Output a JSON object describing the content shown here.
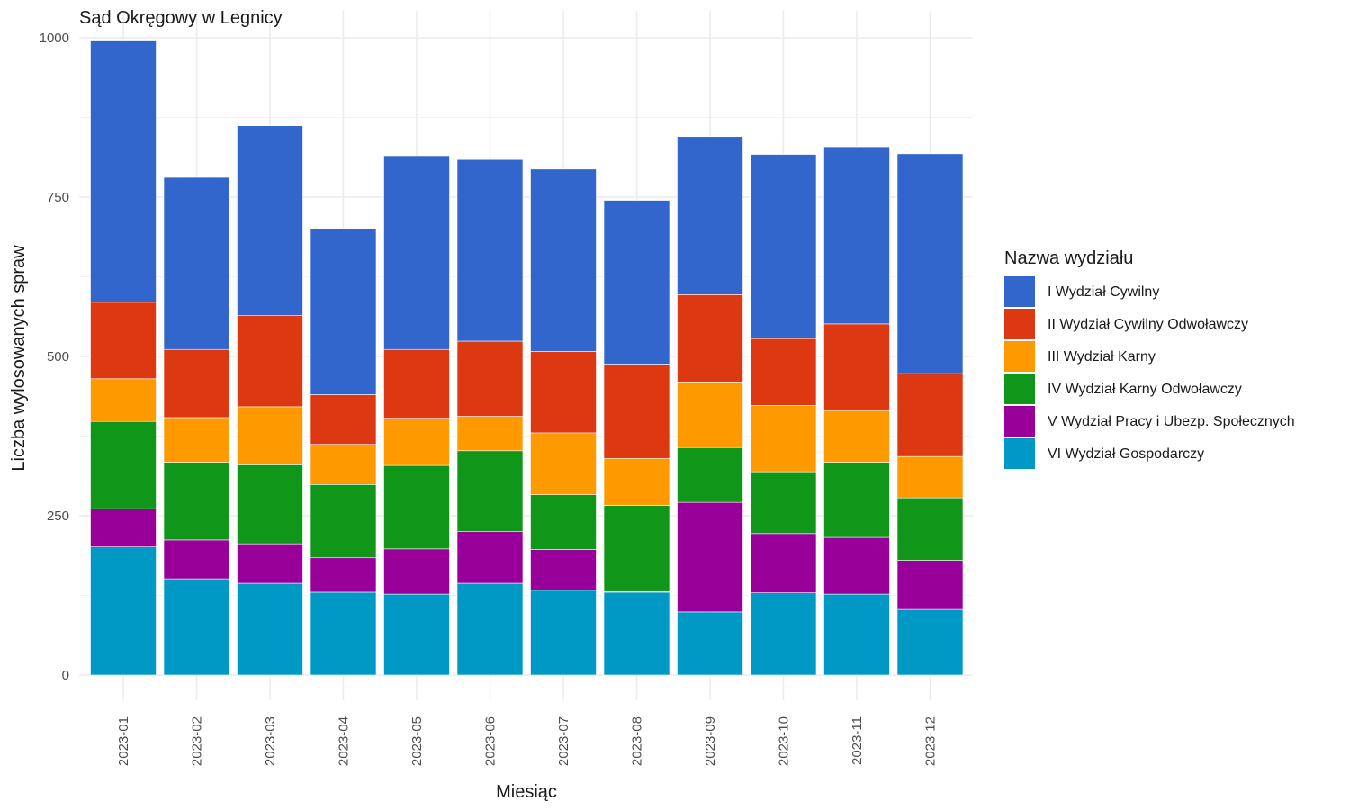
{
  "chart_data": {
    "type": "bar",
    "stacked": true,
    "title": "Sąd Okręgowy w Legnicy",
    "xlabel": "Miesiąc",
    "ylabel": "Liczba wylosowanych spraw",
    "ylim": [
      0,
      1000
    ],
    "yticks": [
      0,
      250,
      500,
      750,
      1000
    ],
    "grid": true,
    "legend_position": "right",
    "legend_title": "Nazwa wydziału",
    "categories": [
      "2023-01",
      "2023-02",
      "2023-03",
      "2023-04",
      "2023-05",
      "2023-06",
      "2023-07",
      "2023-08",
      "2023-09",
      "2023-10",
      "2023-11",
      "2023-12"
    ],
    "series": [
      {
        "name": "VI Wydział Gospodarczy",
        "color": "#0099C6",
        "values": [
          201,
          151,
          144,
          130,
          127,
          144,
          133,
          130,
          99,
          129,
          127,
          103
        ]
      },
      {
        "name": "V Wydział Pracy i Ubezp. Społecznych",
        "color": "#990099",
        "values": [
          60,
          61,
          62,
          54,
          71,
          81,
          64,
          1,
          172,
          93,
          89,
          77
        ]
      },
      {
        "name": "IV Wydział Karny Odwoławczy",
        "color": "#109618",
        "values": [
          137,
          122,
          124,
          115,
          131,
          127,
          86,
          135,
          86,
          97,
          118,
          98
        ]
      },
      {
        "name": "III Wydział Karny",
        "color": "#FF9900",
        "values": [
          67,
          70,
          91,
          63,
          74,
          54,
          97,
          74,
          103,
          104,
          81,
          65
        ]
      },
      {
        "name": "II Wydział Cywilny Odwoławczy",
        "color": "#DC3912",
        "values": [
          120,
          107,
          143,
          78,
          108,
          118,
          128,
          148,
          137,
          105,
          136,
          130
        ]
      },
      {
        "name": "I Wydział Cywilny",
        "color": "#3366CC",
        "values": [
          410,
          270,
          298,
          261,
          304,
          285,
          286,
          257,
          248,
          289,
          278,
          345
        ]
      }
    ],
    "legend_order": [
      "I Wydział Cywilny",
      "II Wydział Cywilny Odwoławczy",
      "III Wydział Karny",
      "IV Wydział Karny Odwoławczy",
      "V Wydział Pracy i Ubezp. Społecznych",
      "VI Wydział Gospodarczy"
    ]
  }
}
